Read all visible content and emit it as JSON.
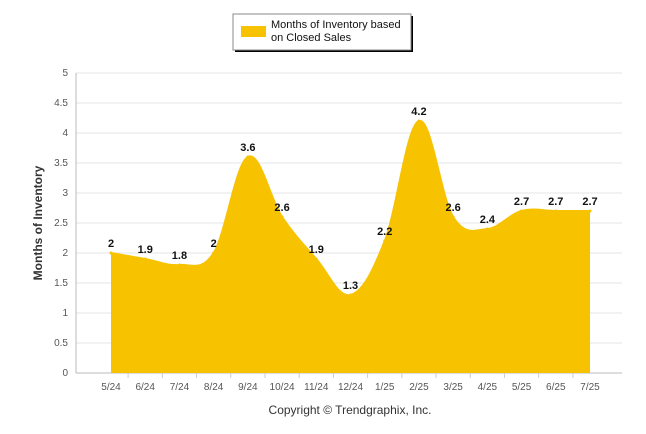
{
  "chart_data": {
    "type": "area",
    "categories": [
      "5/24",
      "6/24",
      "7/24",
      "8/24",
      "9/24",
      "10/24",
      "11/24",
      "12/24",
      "1/25",
      "2/25",
      "3/25",
      "4/25",
      "5/25",
      "6/25",
      "7/25"
    ],
    "series": [
      {
        "name": "Months of Inventory based on Closed Sales",
        "values": [
          2,
          1.9,
          1.8,
          2,
          3.6,
          2.6,
          1.9,
          1.3,
          2.2,
          4.2,
          2.6,
          2.4,
          2.7,
          2.7,
          2.7
        ],
        "labels": [
          "2",
          "1.9",
          "1.8",
          "2",
          "3.6",
          "2.6",
          "1.9",
          "1.3",
          "2.2",
          "4.2",
          "2.6",
          "2.4",
          "2.7",
          "2.7",
          "2.7"
        ],
        "color": "#F7C200"
      }
    ],
    "yticks": [
      "0",
      "0.5",
      "1",
      "1.5",
      "2",
      "2.5",
      "3",
      "3.5",
      "4",
      "4.5",
      "5"
    ],
    "ylim": [
      0,
      5
    ],
    "ylabel": "Months of Inventory",
    "xlabel": "",
    "grid": true,
    "legend_position": "top-center",
    "legend_lines": [
      "Months of Inventory based",
      "on Closed Sales"
    ]
  },
  "footer": "Copyright © Trendgraphix, Inc."
}
